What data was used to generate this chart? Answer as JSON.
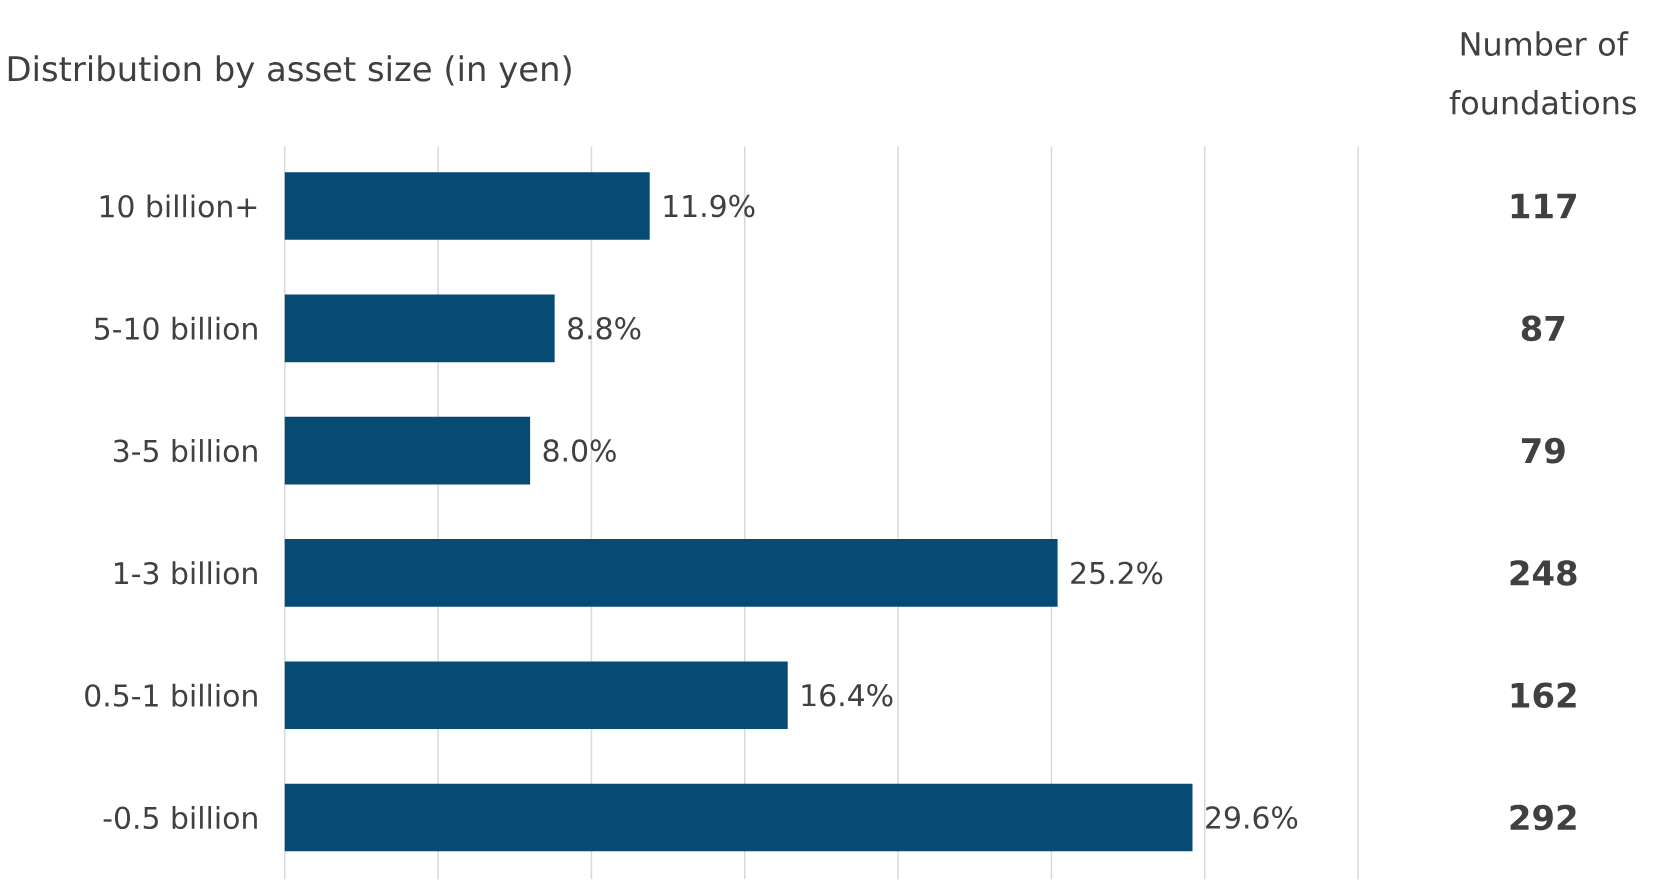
{
  "chart_data": {
    "type": "bar",
    "orientation": "horizontal",
    "title": "Distribution by asset size (in yen)",
    "categories": [
      "10 billion+",
      "5-10 billion",
      "3-5 billion",
      "1-3 billion",
      "0.5-1 billion",
      "-0.5 billion"
    ],
    "values": [
      11.9,
      8.8,
      8.0,
      25.2,
      16.4,
      29.6
    ],
    "value_labels": [
      "11.9%",
      "8.8%",
      "8.0%",
      "25.2%",
      "16.4%",
      "29.6%"
    ],
    "color": "#064b73",
    "xlim": [
      0,
      35
    ],
    "xticks": [
      {
        "value": 0,
        "label": null
      },
      {
        "value": 5,
        "label": null
      },
      {
        "value": 10,
        "label": null
      },
      {
        "value": 15,
        "label": null
      },
      {
        "value": 20,
        "label": null
      },
      {
        "value": 25,
        "label": null
      },
      {
        "value": 30,
        "label": null
      },
      {
        "value": 35,
        "label": null
      }
    ],
    "grid": "x",
    "tick_labels": "y",
    "annotations": [
      "Number of foundations",
      "117",
      "87",
      "79",
      "248",
      "162",
      "292"
    ]
  }
}
